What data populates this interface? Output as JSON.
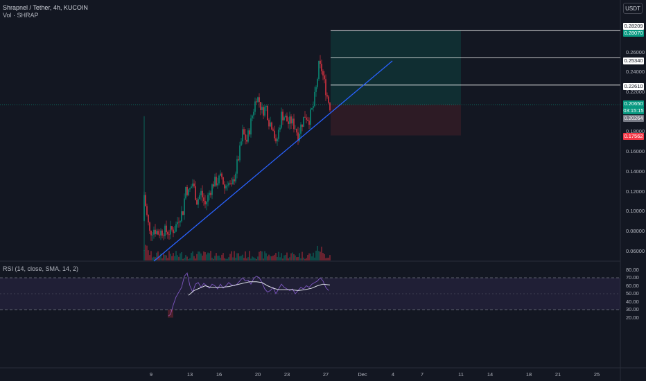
{
  "header": {
    "symbol_line": "Shrapnel / Tether, 4h, KUCOIN",
    "volume_line": "Vol · SHRAP",
    "currency_button": "USDT"
  },
  "price_axis": {
    "ticks": [
      "0.26000",
      "0.24000",
      "0.22000",
      "0.18000",
      "0.16000",
      "0.14000",
      "0.12000",
      "0.10000",
      "0.08000",
      "0.06000"
    ],
    "labels": [
      {
        "text": "0.28209",
        "bg": "#ffffff",
        "fg": "#131722",
        "price": 0.28209
      },
      {
        "text": "0.28070",
        "bg": "#089981",
        "fg": "#ffffff",
        "price": 0.2807
      },
      {
        "text": "0.25340",
        "bg": "#ffffff",
        "fg": "#131722",
        "price": 0.2534
      },
      {
        "text": "0.22610",
        "bg": "#ffffff",
        "fg": "#131722",
        "price": 0.2261
      },
      {
        "text": "0.20650",
        "bg": "#089981",
        "fg": "#ffffff",
        "price": 0.2065
      },
      {
        "text": "03:15:15",
        "bg": "#089981",
        "fg": "#ffffff",
        "price": 0.2
      },
      {
        "text": "0.20264",
        "bg": "#787b86",
        "fg": "#ffffff",
        "price": 0.1935
      },
      {
        "text": "0.17562",
        "bg": "#f23645",
        "fg": "#ffffff",
        "price": 0.17562
      }
    ]
  },
  "rsi": {
    "legend": "RSI (14, close, SMA, 14, 2)",
    "ticks": [
      "80.00",
      "70.00",
      "60.00",
      "50.00",
      "40.00",
      "30.00",
      "20.00"
    ],
    "upper": 70,
    "lower": 30
  },
  "time_axis": {
    "labels": [
      "9",
      "13",
      "16",
      "20",
      "23",
      "27",
      "Dec",
      "4",
      "7",
      "11",
      "14",
      "18",
      "21",
      "25"
    ]
  },
  "colors": {
    "bg": "#131722",
    "up": "#089981",
    "down": "#f23645",
    "trendline": "#2962ff",
    "rsi_line": "#7e57c2",
    "rsi_ma": "#e0e3eb"
  }
}
